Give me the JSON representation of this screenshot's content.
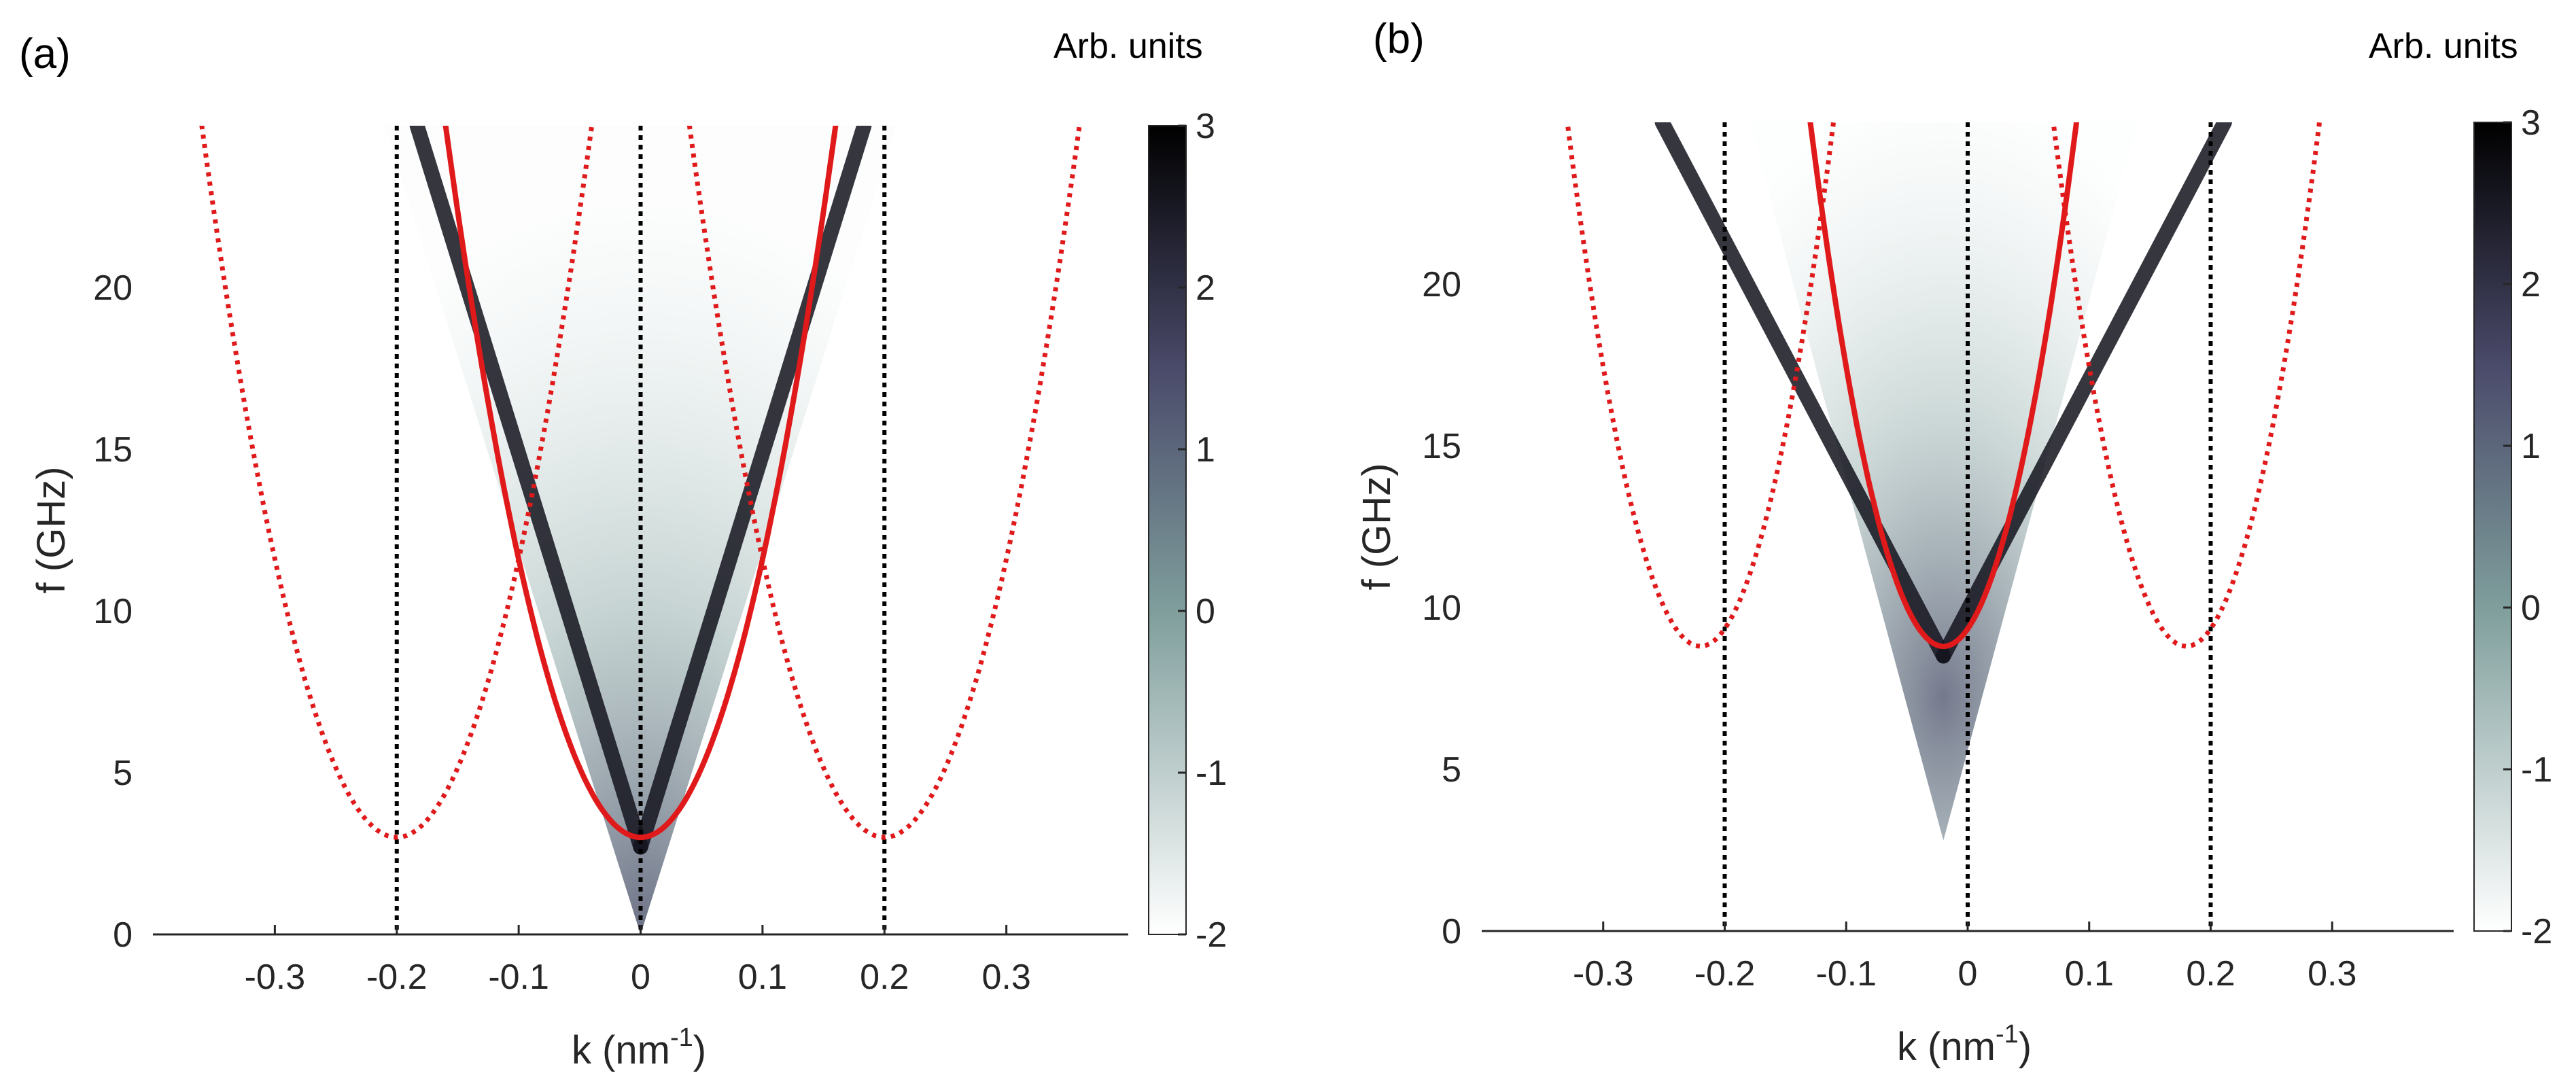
{
  "chart_data": [
    {
      "type": "heatmap",
      "panel_label": "(a)",
      "xlabel_base": "k (nm",
      "xlabel_exp": "-1",
      "xlabel_close": ")",
      "ylabel": "f (GHz)",
      "xlim": [
        -0.4,
        0.4
      ],
      "ylim": [
        0,
        25
      ],
      "xticks": [
        "-0.3",
        "-0.2",
        "-0.1",
        "0",
        "0.1",
        "0.2",
        "0.3"
      ],
      "xtick_values": [
        -0.3,
        -0.2,
        -0.1,
        0,
        0.1,
        0.2,
        0.3
      ],
      "yticks": [
        "0",
        "5",
        "10",
        "15",
        "20"
      ],
      "ytick_values": [
        0,
        5,
        10,
        15,
        20
      ],
      "colorbar": {
        "title": "Arb. units",
        "range": [
          -2,
          3
        ],
        "ticks": [
          "-2",
          "-1",
          "0",
          "1",
          "2",
          "3"
        ],
        "tick_values": [
          -2,
          -1,
          0,
          1,
          2,
          3
        ],
        "low_color": "#ffffff",
        "mid_color": "#7f9e9c",
        "high_color": "#000000"
      },
      "dispersion": {
        "f_min_GHz": 3,
        "k_min": 0,
        "curvature_GHz_per_nm2": 860
      },
      "intensity_band": {
        "slope_GHz_per_nm_inv": 120,
        "width": 0.012
      },
      "vertical_lines_k": [
        -0.2,
        0,
        0.2
      ],
      "folded_curves_k0": [
        -0.2,
        0.2
      ],
      "main_curve_color": "#e0191b",
      "folded_curve_color": "#e0191b",
      "vline_color": "#000000"
    },
    {
      "type": "heatmap",
      "panel_label": "(b)",
      "xlabel_base": "k (nm",
      "xlabel_exp": "-1",
      "xlabel_close": ")",
      "ylabel": "f (GHz)",
      "xlim": [
        -0.4,
        0.4
      ],
      "ylim": [
        0,
        25
      ],
      "xticks": [
        "-0.3",
        "-0.2",
        "-0.1",
        "0",
        "0.1",
        "0.2",
        "0.3"
      ],
      "xtick_values": [
        -0.3,
        -0.2,
        -0.1,
        0,
        0.1,
        0.2,
        0.3
      ],
      "yticks": [
        "0",
        "5",
        "10",
        "15",
        "20"
      ],
      "ytick_values": [
        0,
        5,
        10,
        15,
        20
      ],
      "colorbar": {
        "title": "Arb. units",
        "range": [
          -2,
          3
        ],
        "ticks": [
          "-2",
          "-1",
          "0",
          "1",
          "2",
          "3"
        ],
        "tick_values": [
          -2,
          -1,
          0,
          1,
          2,
          3
        ],
        "low_color": "#ffffff",
        "mid_color": "#7f9e9c",
        "high_color": "#000000"
      },
      "dispersion": {
        "f_min_GHz": 8.8,
        "k_min": -0.02,
        "curvature_GHz_per_nm2": 1350
      },
      "intensity_band": {
        "slope_GHz_per_nm_inv": 70,
        "width": 0.012
      },
      "vertical_lines_k": [
        -0.2,
        0,
        0.2
      ],
      "folded_curves_k0": [
        -0.22,
        0.18
      ],
      "main_curve_color": "#e0191b",
      "folded_curve_color": "#e0191b",
      "vline_color": "#000000"
    }
  ]
}
